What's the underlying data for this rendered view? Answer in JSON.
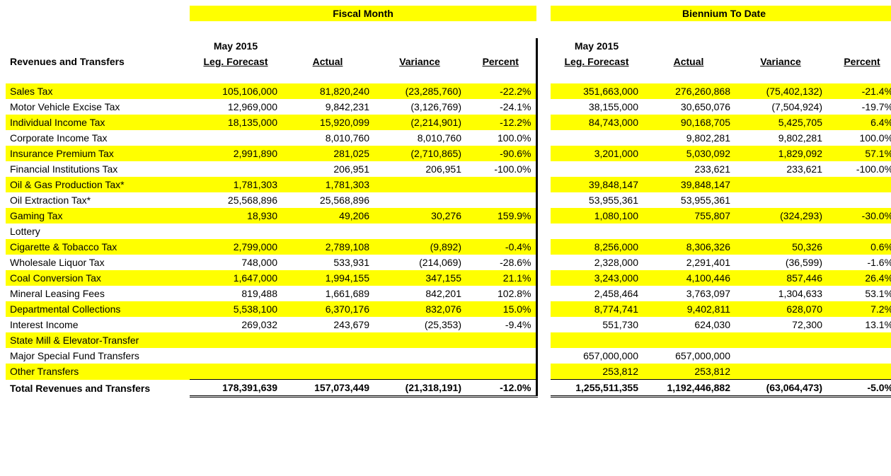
{
  "headers": {
    "left_title": "Revenues and Transfers",
    "month_label": "May 2015",
    "forecast": "Leg. Forecast",
    "actual": "Actual",
    "variance": "Variance",
    "percent": "Percent",
    "fiscal_month": "Fiscal Month",
    "biennium": "Biennium To Date"
  },
  "colors": {
    "highlight": "#ffff00",
    "text": "#000000",
    "background": "#ffffff"
  },
  "typography": {
    "font_family": "Arial",
    "body_fontsize_pt": 11,
    "header_fontsize_pt": 11,
    "header_weight": "bold"
  },
  "rows": [
    {
      "label": "Sales Tax",
      "hl": true,
      "fm": {
        "f": "105,106,000",
        "a": "81,820,240",
        "v": "(23,285,760)",
        "p": "-22.2%"
      },
      "btd": {
        "f": "351,663,000",
        "a": "276,260,868",
        "v": "(75,402,132)",
        "p": "-21.4%"
      }
    },
    {
      "label": "Motor Vehicle Excise Tax",
      "hl": false,
      "fm": {
        "f": "12,969,000",
        "a": "9,842,231",
        "v": "(3,126,769)",
        "p": "-24.1%"
      },
      "btd": {
        "f": "38,155,000",
        "a": "30,650,076",
        "v": "(7,504,924)",
        "p": "-19.7%"
      }
    },
    {
      "label": "Individual Income Tax",
      "hl": true,
      "fm": {
        "f": "18,135,000",
        "a": "15,920,099",
        "v": "(2,214,901)",
        "p": "-12.2%"
      },
      "btd": {
        "f": "84,743,000",
        "a": "90,168,705",
        "v": "5,425,705",
        "p": "6.4%"
      }
    },
    {
      "label": "Corporate Income Tax",
      "hl": false,
      "fm": {
        "f": "",
        "a": "8,010,760",
        "v": "8,010,760",
        "p": "100.0%"
      },
      "btd": {
        "f": "",
        "a": "9,802,281",
        "v": "9,802,281",
        "p": "100.0%"
      }
    },
    {
      "label": "Insurance Premium Tax",
      "hl": true,
      "fm": {
        "f": "2,991,890",
        "a": "281,025",
        "v": "(2,710,865)",
        "p": "-90.6%"
      },
      "btd": {
        "f": "3,201,000",
        "a": "5,030,092",
        "v": "1,829,092",
        "p": "57.1%"
      }
    },
    {
      "label": "Financial Institutions Tax",
      "hl": false,
      "fm": {
        "f": "",
        "a": "206,951",
        "v": "206,951",
        "p": "-100.0%"
      },
      "btd": {
        "f": "",
        "a": "233,621",
        "v": "233,621",
        "p": "-100.0%"
      }
    },
    {
      "label": "Oil & Gas Production Tax*",
      "hl": true,
      "fm": {
        "f": "1,781,303",
        "a": "1,781,303",
        "v": "",
        "p": ""
      },
      "btd": {
        "f": "39,848,147",
        "a": "39,848,147",
        "v": "",
        "p": ""
      }
    },
    {
      "label": "Oil Extraction Tax*",
      "hl": false,
      "fm": {
        "f": "25,568,896",
        "a": "25,568,896",
        "v": "",
        "p": ""
      },
      "btd": {
        "f": "53,955,361",
        "a": "53,955,361",
        "v": "",
        "p": ""
      }
    },
    {
      "label": "Gaming Tax",
      "hl": true,
      "fm": {
        "f": "18,930",
        "a": "49,206",
        "v": "30,276",
        "p": "159.9%"
      },
      "btd": {
        "f": "1,080,100",
        "a": "755,807",
        "v": "(324,293)",
        "p": "-30.0%"
      }
    },
    {
      "label": "Lottery",
      "hl": false,
      "fm": {
        "f": "",
        "a": "",
        "v": "",
        "p": ""
      },
      "btd": {
        "f": "",
        "a": "",
        "v": "",
        "p": ""
      }
    },
    {
      "label": "Cigarette & Tobacco Tax",
      "hl": true,
      "fm": {
        "f": "2,799,000",
        "a": "2,789,108",
        "v": "(9,892)",
        "p": "-0.4%"
      },
      "btd": {
        "f": "8,256,000",
        "a": "8,306,326",
        "v": "50,326",
        "p": "0.6%"
      }
    },
    {
      "label": "Wholesale Liquor Tax",
      "hl": false,
      "fm": {
        "f": "748,000",
        "a": "533,931",
        "v": "(214,069)",
        "p": "-28.6%"
      },
      "btd": {
        "f": "2,328,000",
        "a": "2,291,401",
        "v": "(36,599)",
        "p": "-1.6%"
      }
    },
    {
      "label": "Coal Conversion Tax",
      "hl": true,
      "fm": {
        "f": "1,647,000",
        "a": "1,994,155",
        "v": "347,155",
        "p": "21.1%"
      },
      "btd": {
        "f": "3,243,000",
        "a": "4,100,446",
        "v": "857,446",
        "p": "26.4%"
      }
    },
    {
      "label": "Mineral Leasing Fees",
      "hl": false,
      "fm": {
        "f": "819,488",
        "a": "1,661,689",
        "v": "842,201",
        "p": "102.8%"
      },
      "btd": {
        "f": "2,458,464",
        "a": "3,763,097",
        "v": "1,304,633",
        "p": "53.1%"
      }
    },
    {
      "label": "Departmental Collections",
      "hl": true,
      "fm": {
        "f": "5,538,100",
        "a": "6,370,176",
        "v": "832,076",
        "p": "15.0%"
      },
      "btd": {
        "f": "8,774,741",
        "a": "9,402,811",
        "v": "628,070",
        "p": "7.2%"
      }
    },
    {
      "label": "Interest Income",
      "hl": false,
      "fm": {
        "f": "269,032",
        "a": "243,679",
        "v": "(25,353)",
        "p": "-9.4%"
      },
      "btd": {
        "f": "551,730",
        "a": "624,030",
        "v": "72,300",
        "p": "13.1%"
      }
    },
    {
      "label": "State Mill & Elevator-Transfer",
      "hl": true,
      "fm": {
        "f": "",
        "a": "",
        "v": "",
        "p": ""
      },
      "btd": {
        "f": "",
        "a": "",
        "v": "",
        "p": ""
      }
    },
    {
      "label": "Major Special Fund Transfers",
      "hl": false,
      "fm": {
        "f": "",
        "a": "",
        "v": "",
        "p": ""
      },
      "btd": {
        "f": "657,000,000",
        "a": "657,000,000",
        "v": "",
        "p": ""
      }
    },
    {
      "label": "Other Transfers",
      "hl": true,
      "fm": {
        "f": "",
        "a": "",
        "v": "",
        "p": ""
      },
      "btd": {
        "f": "253,812",
        "a": "253,812",
        "v": "",
        "p": ""
      }
    }
  ],
  "total": {
    "label": "Total Revenues and Transfers",
    "fm": {
      "f": "178,391,639",
      "a": "157,073,449",
      "v": "(21,318,191)",
      "p": "-12.0%"
    },
    "btd": {
      "f": "1,255,511,355",
      "a": "1,192,446,882",
      "v": "(63,064,473)",
      "p": "-5.0%"
    }
  }
}
